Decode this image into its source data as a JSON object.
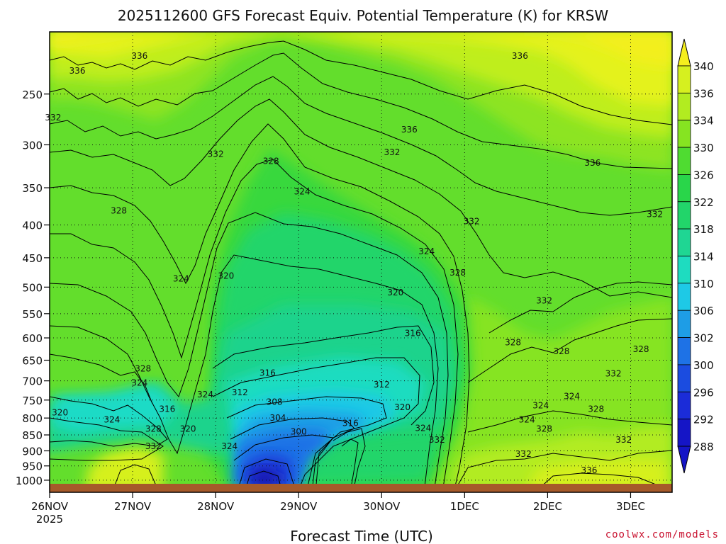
{
  "chart_data": {
    "type": "heatmap",
    "title": "2025112600 GFS Forecast Equiv. Potential Temperature (K) for KRSW",
    "xlabel": "Forecast Time (UTC)",
    "ylabel": "",
    "x_ticks": [
      "26NOV",
      "27NOV",
      "28NOV",
      "29NOV",
      "30NOV",
      "1DEC",
      "2DEC",
      "3DEC"
    ],
    "x_first_tick_sublabel": "2025",
    "xlim_hours": [
      0,
      180
    ],
    "y_ticks": [
      250,
      300,
      350,
      400,
      450,
      500,
      550,
      600,
      650,
      700,
      750,
      800,
      850,
      900,
      950,
      1000
    ],
    "ylim_hPa": [
      200,
      1013
    ],
    "y_scale": "log",
    "y_inverted": true,
    "colorbar": {
      "labels": [
        340,
        336,
        334,
        330,
        326,
        322,
        318,
        314,
        310,
        306,
        302,
        300,
        296,
        292,
        288
      ],
      "colors": [
        "#f5ee1e",
        "#d6f01f",
        "#b2ec20",
        "#86e421",
        "#4fdc31",
        "#29d64a",
        "#22d56a",
        "#1fd693",
        "#1edcc0",
        "#1ec9e6",
        "#1e9de6",
        "#1e72e6",
        "#1b4ce0",
        "#1b2cd8",
        "#1515c6"
      ],
      "placement": "right"
    },
    "contour_labels": [
      {
        "value": "336",
        "hour": 8,
        "p": 230
      },
      {
        "value": "336",
        "hour": 26,
        "p": 218
      },
      {
        "value": "336",
        "hour": 104,
        "p": 284
      },
      {
        "value": "336",
        "hour": 136,
        "p": 218
      },
      {
        "value": "336",
        "hour": 157,
        "p": 320
      },
      {
        "value": "336",
        "hour": 156,
        "p": 965
      },
      {
        "value": "332",
        "hour": 1,
        "p": 272
      },
      {
        "value": "332",
        "hour": 48,
        "p": 310
      },
      {
        "value": "332",
        "hour": 99,
        "p": 308
      },
      {
        "value": "332",
        "hour": 122,
        "p": 395
      },
      {
        "value": "332",
        "hour": 143,
        "p": 525
      },
      {
        "value": "332",
        "hour": 175,
        "p": 385
      },
      {
        "value": "332",
        "hour": 30,
        "p": 885
      },
      {
        "value": "332",
        "hour": 112,
        "p": 865
      },
      {
        "value": "332",
        "hour": 137,
        "p": 910
      },
      {
        "value": "332",
        "hour": 163,
        "p": 682
      },
      {
        "value": "332",
        "hour": 166,
        "p": 865
      },
      {
        "value": "328",
        "hour": 20,
        "p": 380
      },
      {
        "value": "328",
        "hour": 64,
        "p": 318
      },
      {
        "value": "328",
        "hour": 118,
        "p": 475
      },
      {
        "value": "328",
        "hour": 134,
        "p": 610
      },
      {
        "value": "328",
        "hour": 148,
        "p": 630
      },
      {
        "value": "328",
        "hour": 171,
        "p": 625
      },
      {
        "value": "328",
        "hour": 27,
        "p": 670
      },
      {
        "value": "328",
        "hour": 30,
        "p": 832
      },
      {
        "value": "328",
        "hour": 143,
        "p": 832
      },
      {
        "value": "328",
        "hour": 158,
        "p": 775
      },
      {
        "value": "324",
        "hour": 38,
        "p": 485
      },
      {
        "value": "324",
        "hour": 73,
        "p": 355
      },
      {
        "value": "324",
        "hour": 109,
        "p": 440
      },
      {
        "value": "324",
        "hour": 26,
        "p": 705
      },
      {
        "value": "324",
        "hour": 45,
        "p": 735
      },
      {
        "value": "324",
        "hour": 18,
        "p": 805
      },
      {
        "value": "324",
        "hour": 52,
        "p": 885
      },
      {
        "value": "324",
        "hour": 108,
        "p": 830
      },
      {
        "value": "324",
        "hour": 138,
        "p": 805
      },
      {
        "value": "324",
        "hour": 142,
        "p": 765
      },
      {
        "value": "324",
        "hour": 151,
        "p": 740
      },
      {
        "value": "320",
        "hour": 51,
        "p": 480
      },
      {
        "value": "320",
        "hour": 100,
        "p": 510
      },
      {
        "value": "320",
        "hour": 3,
        "p": 785
      },
      {
        "value": "320",
        "hour": 40,
        "p": 832
      },
      {
        "value": "320",
        "hour": 102,
        "p": 770
      },
      {
        "value": "316",
        "hour": 63,
        "p": 680
      },
      {
        "value": "316",
        "hour": 105,
        "p": 590
      },
      {
        "value": "316",
        "hour": 34,
        "p": 775
      },
      {
        "value": "316",
        "hour": 87,
        "p": 815
      },
      {
        "value": "312",
        "hour": 55,
        "p": 730
      },
      {
        "value": "312",
        "hour": 96,
        "p": 710
      },
      {
        "value": "308",
        "hour": 65,
        "p": 755
      },
      {
        "value": "304",
        "hour": 66,
        "p": 800
      },
      {
        "value": "300",
        "hour": 72,
        "p": 840
      }
    ]
  },
  "credit": "coolwx.com/models"
}
